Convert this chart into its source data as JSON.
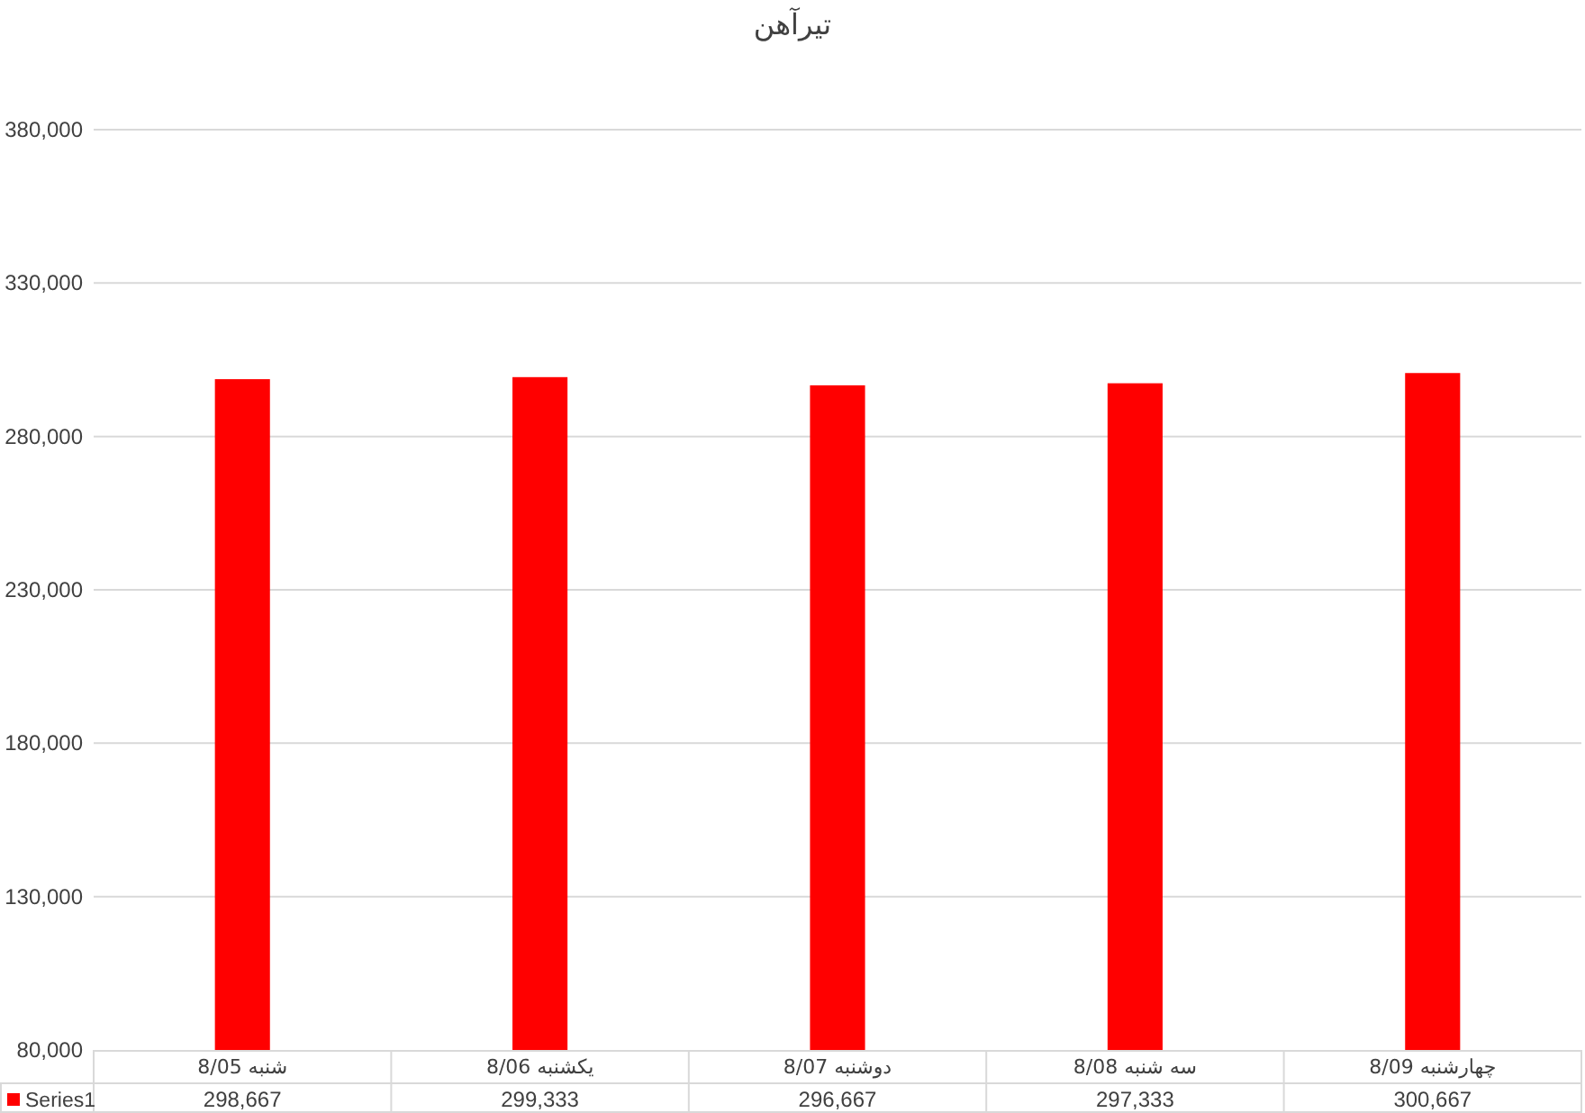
{
  "chart_data": {
    "type": "bar",
    "title": "تیرآهن",
    "categories": [
      "شنبه 8/05",
      "یکشنبه 8/06",
      "دوشنبه 8/07",
      "سه شنبه 8/08",
      "چهارشنبه 8/09"
    ],
    "series": [
      {
        "name": "Series1",
        "color": "#ff0000",
        "values": [
          298667,
          299333,
          296667,
          297333,
          300667
        ],
        "value_labels": [
          "298,667",
          "299,333",
          "296,667",
          "297,333",
          "300,667"
        ]
      }
    ],
    "ylim": [
      80000,
      380000
    ],
    "yticks": [
      {
        "value": 80000,
        "label": "80,000"
      },
      {
        "value": 130000,
        "label": "130,000"
      },
      {
        "value": 180000,
        "label": "180,000"
      },
      {
        "value": 230000,
        "label": "230,000"
      },
      {
        "value": 280000,
        "label": "280,000"
      },
      {
        "value": 330000,
        "label": "330,000"
      },
      {
        "value": 380000,
        "label": "380,000"
      }
    ],
    "grid": "y"
  }
}
